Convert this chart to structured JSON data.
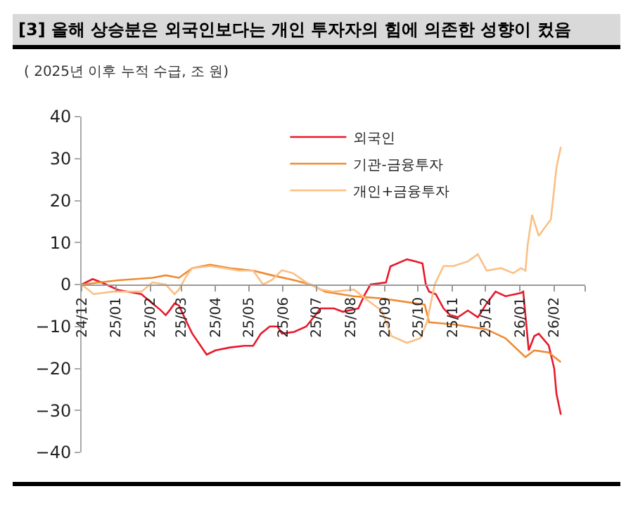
{
  "chart_data": {
    "type": "line",
    "title": "[3] 올해 상승분은 외국인보다는 개인 투자자의 힘에 의존한 성향이 컸음",
    "ylabel": "( 2025년 이후 누적 수급, 조 원)",
    "series": [
      {
        "name": "외국인",
        "color": "#e8192c",
        "x": [
          "2024-12-01",
          "2024-12-11",
          "2024-12-19",
          "2025-01-03",
          "2025-01-24",
          "2025-02-03",
          "2025-02-10",
          "2025-02-15",
          "2025-02-19",
          "2025-02-23",
          "2025-02-27",
          "2025-03-06",
          "2025-03-11",
          "2025-03-24",
          "2025-04-01",
          "2025-04-14",
          "2025-04-27",
          "2025-05-05",
          "2025-05-12",
          "2025-05-20",
          "2025-05-27",
          "2025-05-31",
          "2025-06-11",
          "2025-06-22",
          "2025-07-05",
          "2025-07-17",
          "2025-07-25",
          "2025-08-08",
          "2025-08-14",
          "2025-08-19",
          "2025-09-02",
          "2025-09-06",
          "2025-09-21",
          "2025-09-29",
          "2025-10-05",
          "2025-10-08",
          "2025-10-11",
          "2025-10-17",
          "2025-10-24",
          "2025-10-30",
          "2025-11-06",
          "2025-11-15",
          "2025-11-24",
          "2025-12-02",
          "2025-12-10",
          "2025-12-19",
          "2026-01-02",
          "2026-01-04",
          "2026-01-09",
          "2026-01-14",
          "2026-01-18",
          "2026-01-27",
          "2026-02-01",
          "2026-02-03",
          "2026-02-07"
        ],
        "values": [
          0,
          1.3,
          0.5,
          -1.3,
          -2.3,
          -4.5,
          -6,
          -7.3,
          -6,
          -4.5,
          -5,
          -9,
          -11.7,
          -16.7,
          -15.7,
          -15,
          -14.6,
          -14.6,
          -11.7,
          -10,
          -10,
          -11.7,
          -11.3,
          -10,
          -5.7,
          -5.7,
          -6.5,
          -5.7,
          -2.3,
          0,
          0.5,
          4.3,
          6,
          5.5,
          5,
          0,
          -1.7,
          -2.3,
          -5.7,
          -7.3,
          -7.8,
          -6.2,
          -7.8,
          -4.5,
          -1.7,
          -2.8,
          -2,
          -1.7,
          -15.7,
          -12.3,
          -11.7,
          -14.5,
          -20,
          -26,
          -31
        ]
      },
      {
        "name": "기관-금융투자",
        "color": "#f08a30",
        "x": [
          "2024-12-01",
          "2025-01-03",
          "2025-02-03",
          "2025-02-15",
          "2025-02-27",
          "2025-03-11",
          "2025-03-27",
          "2025-04-14",
          "2025-05-05",
          "2025-05-22",
          "2025-06-10",
          "2025-06-26",
          "2025-07-09",
          "2025-08-04",
          "2025-08-29",
          "2025-09-29",
          "2025-10-07",
          "2025-10-11",
          "2025-11-02",
          "2025-12-02",
          "2025-12-19",
          "2026-01-06",
          "2026-01-14",
          "2026-01-27",
          "2026-02-07"
        ],
        "values": [
          0,
          1,
          1.6,
          2.2,
          1.6,
          3.9,
          4.7,
          3.9,
          3.3,
          2.2,
          1.1,
          0,
          -1.7,
          -2.8,
          -3.3,
          -4.5,
          -4.8,
          -9,
          -9.5,
          -10.7,
          -12.8,
          -17.3,
          -15.7,
          -16.2,
          -18.5
        ]
      },
      {
        "name": "개인+금융투자",
        "color": "#fbbf85",
        "x": [
          "2024-12-01",
          "2024-12-12",
          "2024-12-29",
          "2025-01-12",
          "2025-01-24",
          "2025-02-03",
          "2025-02-15",
          "2025-02-23",
          "2025-02-27",
          "2025-03-06",
          "2025-03-11",
          "2025-03-27",
          "2025-04-09",
          "2025-04-22",
          "2025-05-05",
          "2025-05-14",
          "2025-05-22",
          "2025-05-31",
          "2025-06-10",
          "2025-06-22",
          "2025-07-05",
          "2025-07-17",
          "2025-08-04",
          "2025-08-17",
          "2025-08-29",
          "2025-09-07",
          "2025-09-21",
          "2025-10-03",
          "2025-10-09",
          "2025-10-16",
          "2025-10-24",
          "2025-11-02",
          "2025-11-15",
          "2025-11-24",
          "2025-12-02",
          "2025-12-15",
          "2025-12-26",
          "2026-01-02",
          "2026-01-06",
          "2026-01-08",
          "2026-01-12",
          "2026-01-18",
          "2026-01-29",
          "2026-02-03",
          "2026-02-07"
        ],
        "values": [
          0,
          -2.3,
          -1.7,
          -1.7,
          -1.7,
          0.5,
          0,
          -2.3,
          -1.2,
          2.2,
          3.9,
          4.4,
          3.9,
          3.3,
          3.3,
          0,
          1.1,
          3.4,
          2.7,
          0.5,
          -1.2,
          -1.7,
          -1.2,
          -3.9,
          -6.2,
          -12.3,
          -13.9,
          -12.8,
          -9,
          0,
          4.4,
          4.4,
          5.5,
          7.2,
          3.3,
          3.9,
          2.7,
          3.9,
          3.3,
          9.4,
          16.6,
          11.6,
          15.5,
          27.8,
          32.8
        ]
      }
    ],
    "xlim": [
      "2024-12-01",
      "2026-03-01"
    ],
    "xticks": [
      {
        "value": "2024-12-01",
        "label": "24/12"
      },
      {
        "value": "2025-01-01",
        "label": "25/01"
      },
      {
        "value": "2025-02-01",
        "label": "25/02"
      },
      {
        "value": "2025-03-01",
        "label": "25/03"
      },
      {
        "value": "2025-04-01",
        "label": "25/04"
      },
      {
        "value": "2025-05-01",
        "label": "25/05"
      },
      {
        "value": "2025-06-01",
        "label": "25/06"
      },
      {
        "value": "2025-07-01",
        "label": "25/07"
      },
      {
        "value": "2025-08-01",
        "label": "25/08"
      },
      {
        "value": "2025-09-01",
        "label": "25/09"
      },
      {
        "value": "2025-10-01",
        "label": "25/10"
      },
      {
        "value": "2025-11-01",
        "label": "25/11"
      },
      {
        "value": "2025-12-01",
        "label": "25/12"
      },
      {
        "value": "2026-01-01",
        "label": "26/01"
      },
      {
        "value": "2026-02-01",
        "label": "26/02"
      },
      {
        "value": "2026-03-01",
        "label": null
      }
    ],
    "ylim": [
      -40,
      40
    ],
    "yticks": [
      -40,
      -30,
      -20,
      -10,
      0,
      10,
      20,
      30,
      40
    ],
    "grid": false,
    "legend": "top",
    "marker": "none",
    "line_style": "solid"
  }
}
